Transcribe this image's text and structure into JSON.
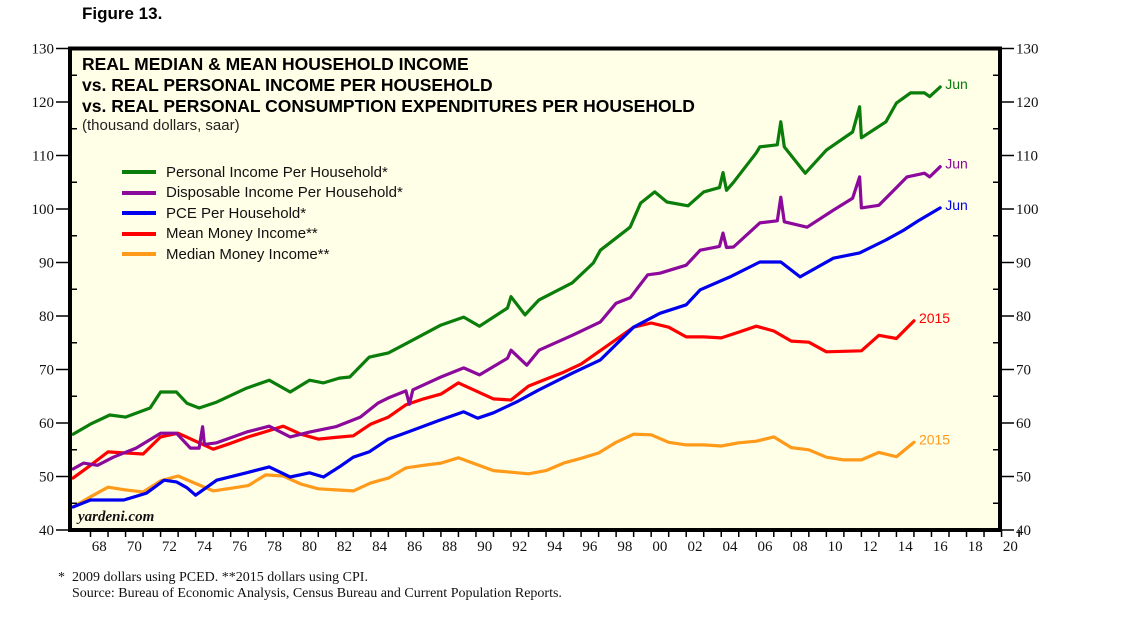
{
  "figure_label": "Figure 13.",
  "watermark": "yardeni.com",
  "footnotes": {
    "line1": "*  2009 dollars using PCED. **2015 dollars using CPI.",
    "line2": "    Source: Bureau of Economic Analysis, Census Bureau and Current Population Reports."
  },
  "colors": {
    "plot_background": "#ffffe8",
    "frame": "#000000"
  },
  "chart_data": {
    "type": "line",
    "title": "REAL MEDIAN & MEAN HOUSEHOLD INCOME",
    "title_lines": [
      "REAL MEDIAN & MEAN HOUSEHOLD INCOME",
      "vs. REAL PERSONAL INCOME  PER HOUSEHOLD",
      "vs. REAL PERSONAL CONSUMPTION EXPENDITURES PER HOUSEHOLD"
    ],
    "subtitle": "(thousand dollars, saar)",
    "xlabel": "",
    "ylabel": "",
    "xlim": [
      1967,
      2020
    ],
    "ylim": [
      40,
      130
    ],
    "x_ticks": [
      "68",
      "70",
      "72",
      "74",
      "76",
      "78",
      "80",
      "82",
      "84",
      "86",
      "88",
      "90",
      "92",
      "94",
      "96",
      "98",
      "00",
      "02",
      "04",
      "06",
      "08",
      "10",
      "12",
      "14",
      "16",
      "18",
      "20"
    ],
    "y_ticks": [
      40,
      50,
      60,
      70,
      80,
      90,
      100,
      110,
      120,
      130
    ],
    "y_axis_sides": [
      "left",
      "right"
    ],
    "grid": false,
    "legend_position": "top-left",
    "series": [
      {
        "name": "Personal Income Per Household*",
        "color": "#0a7d0a",
        "end_label": "Jun",
        "points": [
          [
            1967.0,
            57.9
          ],
          [
            1968.0,
            59.8
          ],
          [
            1969.1,
            61.5
          ],
          [
            1970.0,
            61.1
          ],
          [
            1971.4,
            62.8
          ],
          [
            1972.0,
            65.8
          ],
          [
            1972.9,
            65.8
          ],
          [
            1973.5,
            63.7
          ],
          [
            1974.2,
            62.8
          ],
          [
            1975.2,
            63.9
          ],
          [
            1976.9,
            66.5
          ],
          [
            1978.2,
            68.0
          ],
          [
            1979.4,
            65.8
          ],
          [
            1980.5,
            68.0
          ],
          [
            1981.3,
            67.5
          ],
          [
            1982.2,
            68.4
          ],
          [
            1982.8,
            68.6
          ],
          [
            1983.9,
            72.3
          ],
          [
            1985.0,
            73.1
          ],
          [
            1986.1,
            75.0
          ],
          [
            1988.0,
            78.3
          ],
          [
            1989.3,
            79.8
          ],
          [
            1990.2,
            78.1
          ],
          [
            1991.8,
            81.5
          ],
          [
            1992.0,
            83.6
          ],
          [
            1992.8,
            80.2
          ],
          [
            1993.6,
            83.0
          ],
          [
            1995.5,
            86.2
          ],
          [
            1996.7,
            89.9
          ],
          [
            1997.1,
            92.3
          ],
          [
            1998.8,
            96.6
          ],
          [
            1999.4,
            101.1
          ],
          [
            2000.2,
            103.2
          ],
          [
            2000.9,
            101.3
          ],
          [
            2002.1,
            100.6
          ],
          [
            2003.0,
            103.2
          ],
          [
            2003.9,
            104.0
          ],
          [
            2004.1,
            106.8
          ],
          [
            2004.3,
            103.5
          ],
          [
            2004.7,
            105.0
          ],
          [
            2006.0,
            110.5
          ],
          [
            2006.2,
            111.6
          ],
          [
            2007.2,
            112.0
          ],
          [
            2007.4,
            116.3
          ],
          [
            2007.6,
            111.6
          ],
          [
            2008.8,
            106.7
          ],
          [
            2010.0,
            111.0
          ],
          [
            2011.5,
            114.4
          ],
          [
            2011.9,
            119.1
          ],
          [
            2012.0,
            113.3
          ],
          [
            2013.4,
            116.3
          ],
          [
            2014.0,
            119.8
          ],
          [
            2014.8,
            121.7
          ],
          [
            2015.6,
            121.7
          ],
          [
            2015.9,
            121.0
          ],
          [
            2016.5,
            122.8
          ]
        ]
      },
      {
        "name": "Disposable Income Per Household*",
        "color": "#8b0a9b",
        "end_label": "Jun",
        "points": [
          [
            1967.0,
            51.4
          ],
          [
            1967.6,
            52.5
          ],
          [
            1968.4,
            52.1
          ],
          [
            1969.3,
            53.6
          ],
          [
            1970.6,
            55.3
          ],
          [
            1972.0,
            58.1
          ],
          [
            1972.9,
            58.1
          ],
          [
            1973.7,
            55.3
          ],
          [
            1974.2,
            55.3
          ],
          [
            1974.4,
            59.3
          ],
          [
            1974.5,
            56.0
          ],
          [
            1975.2,
            56.3
          ],
          [
            1976.9,
            58.3
          ],
          [
            1978.2,
            59.4
          ],
          [
            1979.4,
            57.4
          ],
          [
            1980.5,
            58.3
          ],
          [
            1982.0,
            59.3
          ],
          [
            1983.4,
            61.1
          ],
          [
            1984.4,
            63.7
          ],
          [
            1985.0,
            64.7
          ],
          [
            1986.0,
            66.0
          ],
          [
            1986.2,
            63.5
          ],
          [
            1986.4,
            66.2
          ],
          [
            1988.0,
            68.6
          ],
          [
            1989.3,
            70.3
          ],
          [
            1990.2,
            69.0
          ],
          [
            1991.8,
            72.1
          ],
          [
            1992.0,
            73.6
          ],
          [
            1992.9,
            70.8
          ],
          [
            1993.6,
            73.6
          ],
          [
            1995.5,
            76.4
          ],
          [
            1997.1,
            78.9
          ],
          [
            1998.0,
            82.4
          ],
          [
            1998.8,
            83.4
          ],
          [
            1999.8,
            87.7
          ],
          [
            2000.5,
            88.0
          ],
          [
            2002.0,
            89.5
          ],
          [
            2002.8,
            92.3
          ],
          [
            2003.9,
            93.0
          ],
          [
            2004.1,
            95.5
          ],
          [
            2004.3,
            92.8
          ],
          [
            2004.7,
            92.9
          ],
          [
            2006.2,
            97.4
          ],
          [
            2007.2,
            97.8
          ],
          [
            2007.4,
            102.2
          ],
          [
            2007.6,
            97.6
          ],
          [
            2008.9,
            96.6
          ],
          [
            2010.4,
            99.8
          ],
          [
            2011.5,
            102.0
          ],
          [
            2011.9,
            106.0
          ],
          [
            2012.0,
            100.2
          ],
          [
            2013.0,
            100.7
          ],
          [
            2014.6,
            106.0
          ],
          [
            2015.6,
            106.7
          ],
          [
            2015.9,
            106.0
          ],
          [
            2016.5,
            107.9
          ]
        ]
      },
      {
        "name": "PCE Per Household*",
        "color": "#0000ee",
        "end_label": "Jun",
        "points": [
          [
            1967.0,
            44.3
          ],
          [
            1968.0,
            45.6
          ],
          [
            1969.9,
            45.6
          ],
          [
            1971.2,
            46.9
          ],
          [
            1972.2,
            49.3
          ],
          [
            1972.9,
            49.0
          ],
          [
            1973.5,
            47.9
          ],
          [
            1974.0,
            46.5
          ],
          [
            1975.2,
            49.3
          ],
          [
            1976.9,
            50.7
          ],
          [
            1978.2,
            51.8
          ],
          [
            1979.4,
            49.9
          ],
          [
            1980.5,
            50.7
          ],
          [
            1981.3,
            49.9
          ],
          [
            1982.2,
            51.8
          ],
          [
            1983.0,
            53.6
          ],
          [
            1983.9,
            54.6
          ],
          [
            1985.0,
            57.0
          ],
          [
            1986.1,
            58.3
          ],
          [
            1988.0,
            60.6
          ],
          [
            1989.3,
            62.1
          ],
          [
            1990.1,
            60.9
          ],
          [
            1991.0,
            61.9
          ],
          [
            1992.3,
            63.9
          ],
          [
            1993.6,
            66.2
          ],
          [
            1995.5,
            69.3
          ],
          [
            1997.1,
            71.8
          ],
          [
            1999.0,
            77.9
          ],
          [
            2000.5,
            80.5
          ],
          [
            2002.0,
            82.1
          ],
          [
            2002.8,
            84.9
          ],
          [
            2004.5,
            87.3
          ],
          [
            2006.2,
            90.1
          ],
          [
            2007.4,
            90.1
          ],
          [
            2008.5,
            87.3
          ],
          [
            2010.4,
            90.8
          ],
          [
            2011.9,
            91.8
          ],
          [
            2013.4,
            94.2
          ],
          [
            2014.4,
            96.0
          ],
          [
            2015.3,
            97.9
          ],
          [
            2016.5,
            100.2
          ]
        ]
      },
      {
        "name": "Mean Money Income**",
        "color": "#ff0000",
        "end_label": "2015",
        "points": [
          [
            1967,
            49.7
          ],
          [
            1968,
            52.1
          ],
          [
            1969,
            54.6
          ],
          [
            1970,
            54.4
          ],
          [
            1971,
            54.2
          ],
          [
            1972,
            57.4
          ],
          [
            1973,
            58.1
          ],
          [
            1974,
            56.6
          ],
          [
            1975,
            55.1
          ],
          [
            1976,
            56.2
          ],
          [
            1977,
            57.4
          ],
          [
            1978,
            58.4
          ],
          [
            1979,
            59.4
          ],
          [
            1980,
            57.9
          ],
          [
            1981,
            57.0
          ],
          [
            1982,
            57.3
          ],
          [
            1983,
            57.6
          ],
          [
            1984,
            59.8
          ],
          [
            1985,
            61.1
          ],
          [
            1986,
            63.4
          ],
          [
            1987,
            64.5
          ],
          [
            1988,
            65.4
          ],
          [
            1989,
            67.5
          ],
          [
            1990,
            66.0
          ],
          [
            1991,
            64.5
          ],
          [
            1992,
            64.3
          ],
          [
            1993,
            66.9
          ],
          [
            1994,
            68.2
          ],
          [
            1995,
            69.5
          ],
          [
            1996,
            71.0
          ],
          [
            1997,
            73.3
          ],
          [
            1998,
            75.6
          ],
          [
            1999,
            77.9
          ],
          [
            2000,
            78.7
          ],
          [
            2001,
            77.9
          ],
          [
            2002,
            76.1
          ],
          [
            2003,
            76.1
          ],
          [
            2004,
            75.9
          ],
          [
            2005,
            77.0
          ],
          [
            2006,
            78.1
          ],
          [
            2007,
            77.2
          ],
          [
            2008,
            75.3
          ],
          [
            2009,
            75.1
          ],
          [
            2010,
            73.3
          ],
          [
            2011,
            73.4
          ],
          [
            2012,
            73.5
          ],
          [
            2013,
            76.4
          ],
          [
            2014,
            75.8
          ],
          [
            2015,
            79.1
          ]
        ]
      },
      {
        "name": "Median Money Income**",
        "color": "#ff9a1a",
        "end_label": "2015",
        "points": [
          [
            1967,
            44.3
          ],
          [
            1968,
            46.2
          ],
          [
            1969,
            48.0
          ],
          [
            1970,
            47.5
          ],
          [
            1971,
            47.1
          ],
          [
            1972,
            49.2
          ],
          [
            1973,
            50.1
          ],
          [
            1974,
            48.7
          ],
          [
            1975,
            47.3
          ],
          [
            1976,
            47.8
          ],
          [
            1977,
            48.3
          ],
          [
            1978,
            50.3
          ],
          [
            1979,
            50.1
          ],
          [
            1980,
            48.6
          ],
          [
            1981,
            47.7
          ],
          [
            1982,
            47.5
          ],
          [
            1983,
            47.3
          ],
          [
            1984,
            48.8
          ],
          [
            1985,
            49.7
          ],
          [
            1986,
            51.6
          ],
          [
            1987,
            52.1
          ],
          [
            1988,
            52.5
          ],
          [
            1989,
            53.5
          ],
          [
            1990,
            52.3
          ],
          [
            1991,
            51.1
          ],
          [
            1992,
            50.8
          ],
          [
            1993,
            50.5
          ],
          [
            1994,
            51.1
          ],
          [
            1995,
            52.5
          ],
          [
            1996,
            53.4
          ],
          [
            1997,
            54.4
          ],
          [
            1998,
            56.4
          ],
          [
            1999,
            57.9
          ],
          [
            2000,
            57.8
          ],
          [
            2001,
            56.4
          ],
          [
            2002,
            55.9
          ],
          [
            2003,
            55.9
          ],
          [
            2004,
            55.7
          ],
          [
            2005,
            56.3
          ],
          [
            2006,
            56.6
          ],
          [
            2007,
            57.4
          ],
          [
            2008,
            55.4
          ],
          [
            2009,
            55.0
          ],
          [
            2010,
            53.6
          ],
          [
            2011,
            53.1
          ],
          [
            2012,
            53.1
          ],
          [
            2013,
            54.5
          ],
          [
            2014,
            53.7
          ],
          [
            2015,
            56.4
          ]
        ]
      }
    ]
  }
}
